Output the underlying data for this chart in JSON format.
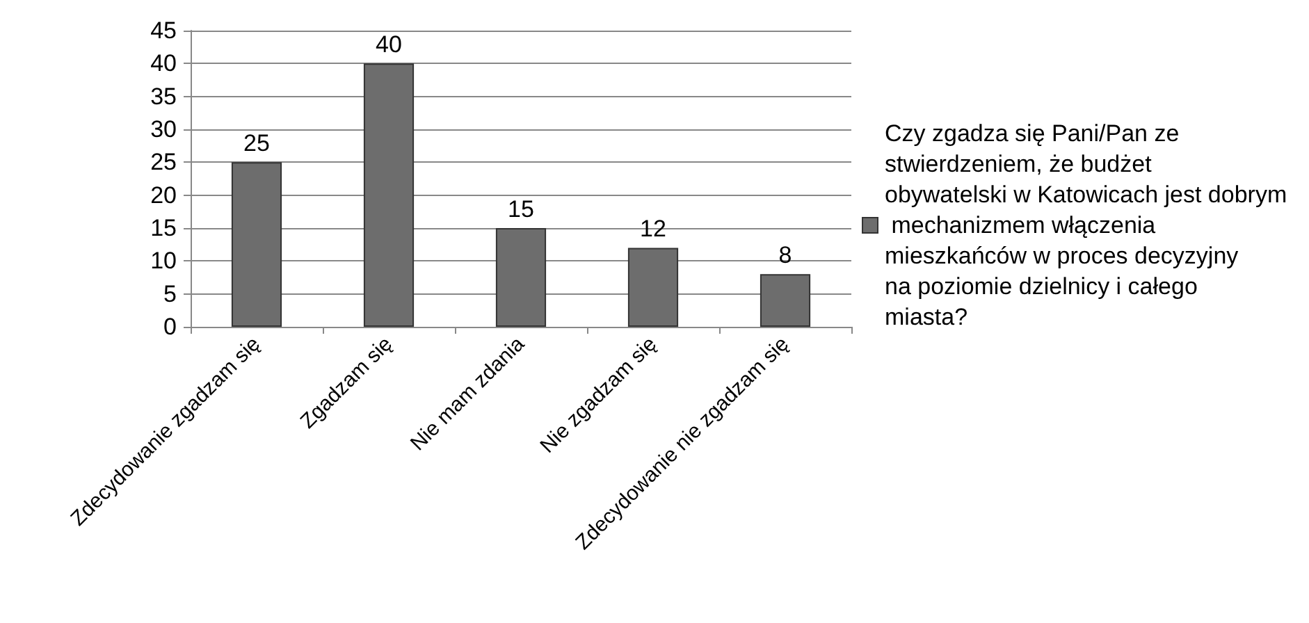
{
  "chart_data": {
    "type": "bar",
    "categories": [
      "Zdecydowanie zgadzam się",
      "Zgadzam się",
      "Nie mam zdania",
      "Nie zgadzam się",
      "Zdecydowanie nie zgadzam się"
    ],
    "series": [
      {
        "name": "Czy zgadza się Pani/Pan ze stwierdzeniem, że budżet obywatelski w Katowicach jest dobrym mechanizmem włączenia mieszkańców w proces decyzyjny na poziomie dzielnicy i całego miasta?",
        "color": "#6d6d6d",
        "values": [
          25,
          40,
          15,
          12,
          8
        ]
      }
    ],
    "ylim": [
      0,
      45
    ],
    "yticks": [
      0,
      5,
      10,
      15,
      20,
      25,
      30,
      35,
      40,
      45
    ],
    "grid": "y",
    "legend": "right",
    "data_labels": true
  }
}
